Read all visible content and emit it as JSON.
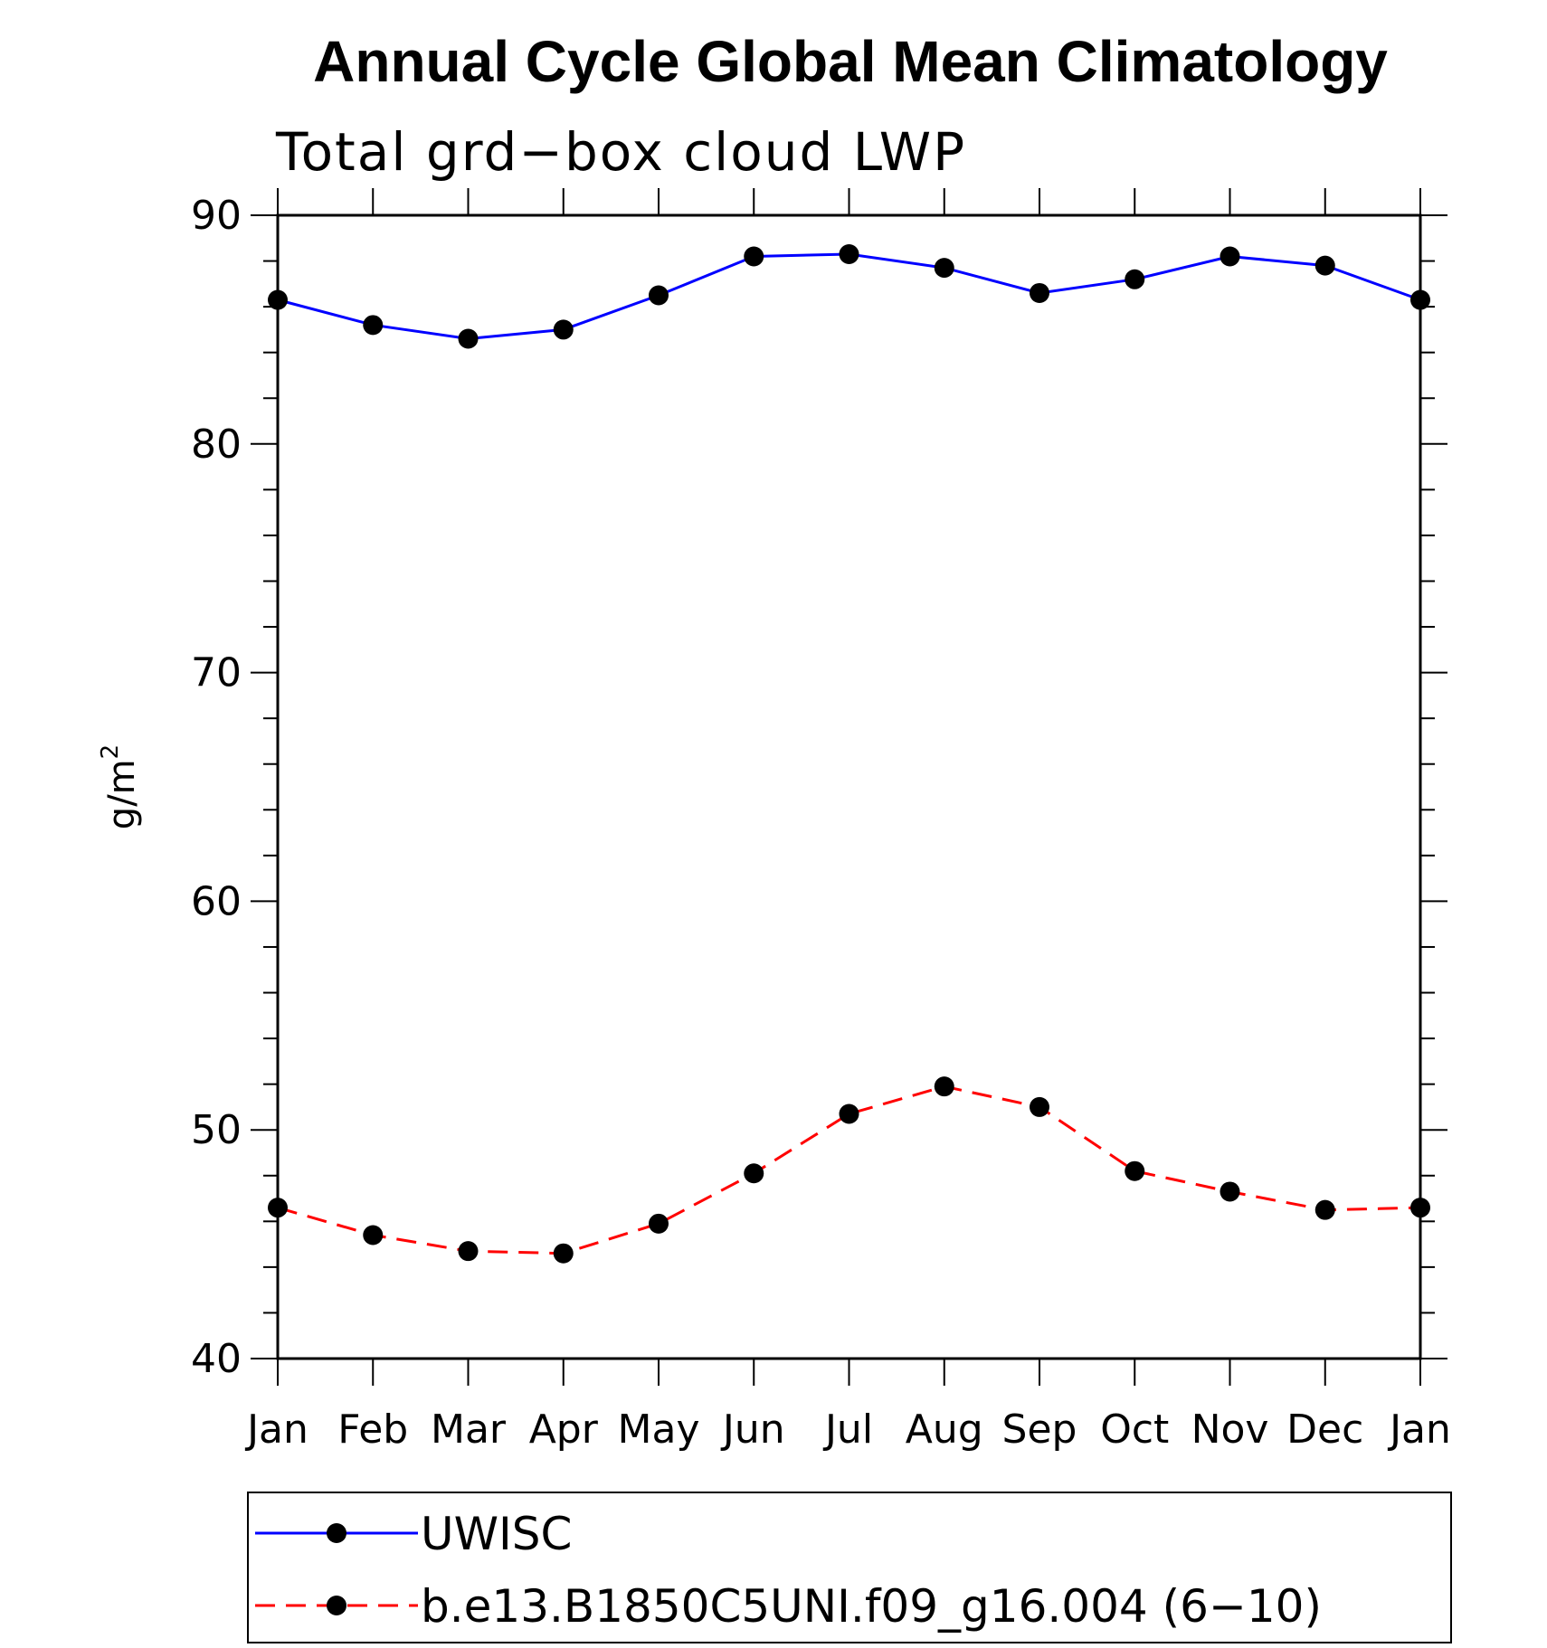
{
  "chart_data": {
    "type": "line",
    "title": "Annual Cycle Global Mean Climatology",
    "subtitle": "Total grd−box cloud LWP",
    "ylabel": "g/m",
    "ylabel_superscript": "2",
    "ylim": [
      40,
      90
    ],
    "yticks": [
      "40",
      "50",
      "60",
      "70",
      "80",
      "90"
    ],
    "categories": [
      "Jan",
      "Feb",
      "Mar",
      "Apr",
      "May",
      "Jun",
      "Jul",
      "Aug",
      "Sep",
      "Oct",
      "Nov",
      "Dec",
      "Jan"
    ],
    "series": [
      {
        "name": "UWISC",
        "color": "#0000ff",
        "dash": "solid",
        "marker": "filled-circle",
        "values": [
          86.3,
          85.2,
          84.6,
          85.0,
          86.5,
          88.2,
          88.3,
          87.7,
          86.6,
          87.2,
          88.2,
          87.8,
          86.3
        ]
      },
      {
        "name": "b.e13.B1850C5UNI.f09_g16.004 (6−10)",
        "color": "#ff0000",
        "dash": "dashed",
        "marker": "filled-circle",
        "values": [
          46.6,
          45.4,
          44.7,
          44.6,
          45.9,
          48.1,
          50.7,
          51.9,
          51.0,
          48.2,
          47.3,
          46.5,
          46.6
        ]
      }
    ],
    "legend_position": "bottom",
    "grid": false
  }
}
